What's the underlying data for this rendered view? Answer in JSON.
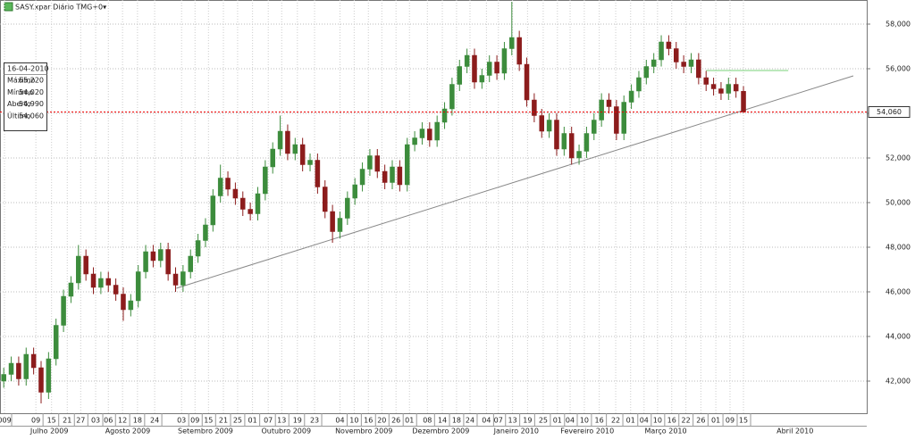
{
  "chart_data": {
    "type": "candlestick",
    "title": "SASY.xpar Diário TMG+0▾",
    "up_color": "#3c8c3c",
    "down_color": "#8c1c1c",
    "grid": true,
    "xlim": [
      -0.5,
      115.5
    ],
    "ylim": [
      40560,
      59080
    ],
    "yticks": [
      {
        "value": 42000,
        "label": "42,000"
      },
      {
        "value": 44000,
        "label": "44,000"
      },
      {
        "value": 46000,
        "label": "46,000"
      },
      {
        "value": 48000,
        "label": "48,000"
      },
      {
        "value": 50000,
        "label": "50,000"
      },
      {
        "value": 52000,
        "label": "52,000"
      },
      {
        "value": 54000,
        "label": "54,000"
      },
      {
        "value": 56000,
        "label": "56,000"
      },
      {
        "value": 58000,
        "label": "58,000"
      }
    ],
    "xticks": [
      {
        "value": 0.1,
        "label": "009"
      },
      {
        "value": 4.3,
        "label": "09"
      },
      {
        "value": 6.4,
        "label": "15"
      },
      {
        "value": 8.5,
        "label": "21"
      },
      {
        "value": 10.3,
        "label": "27"
      },
      {
        "value": 12.3,
        "label": "03"
      },
      {
        "value": 14,
        "label": "06"
      },
      {
        "value": 15.9,
        "label": "12"
      },
      {
        "value": 17.9,
        "label": "18"
      },
      {
        "value": 20.2,
        "label": "24"
      },
      {
        "value": 23.8,
        "label": "03"
      },
      {
        "value": 25.6,
        "label": "09"
      },
      {
        "value": 27.4,
        "label": "15"
      },
      {
        "value": 29.4,
        "label": "21"
      },
      {
        "value": 31.3,
        "label": "25"
      },
      {
        "value": 33.3,
        "label": "01"
      },
      {
        "value": 35.4,
        "label": "07"
      },
      {
        "value": 37.2,
        "label": "13"
      },
      {
        "value": 39.3,
        "label": "19"
      },
      {
        "value": 41.6,
        "label": "23"
      },
      {
        "value": 45,
        "label": "04"
      },
      {
        "value": 46.9,
        "label": "10"
      },
      {
        "value": 48.8,
        "label": "16"
      },
      {
        "value": 50.6,
        "label": "20"
      },
      {
        "value": 52.5,
        "label": "26"
      },
      {
        "value": 54.3,
        "label": "01"
      },
      {
        "value": 56.7,
        "label": "08"
      },
      {
        "value": 58.7,
        "label": "14"
      },
      {
        "value": 60.6,
        "label": "18"
      },
      {
        "value": 62.4,
        "label": "24"
      },
      {
        "value": 64.6,
        "label": "04"
      },
      {
        "value": 66.2,
        "label": "07"
      },
      {
        "value": 68.1,
        "label": "13"
      },
      {
        "value": 70.1,
        "label": "19"
      },
      {
        "value": 72.2,
        "label": "25"
      },
      {
        "value": 74.1,
        "label": "01"
      },
      {
        "value": 75.8,
        "label": "04"
      },
      {
        "value": 77.7,
        "label": "10"
      },
      {
        "value": 79.7,
        "label": "16"
      },
      {
        "value": 81.9,
        "label": "22"
      },
      {
        "value": 83.9,
        "label": "01"
      },
      {
        "value": 85.7,
        "label": "04"
      },
      {
        "value": 87.5,
        "label": "10"
      },
      {
        "value": 89.4,
        "label": "16"
      },
      {
        "value": 91.3,
        "label": "22"
      },
      {
        "value": 93.3,
        "label": "26"
      },
      {
        "value": 95.3,
        "label": "01"
      },
      {
        "value": 97.2,
        "label": "09"
      },
      {
        "value": 99,
        "label": "15"
      }
    ],
    "months": [
      {
        "value": 6.1,
        "label": "Julho 2009"
      },
      {
        "value": 16.6,
        "label": "Agosto 2009"
      },
      {
        "value": 27,
        "label": "Setembro 2009"
      },
      {
        "value": 37.8,
        "label": "Outubro 2009"
      },
      {
        "value": 48.2,
        "label": "Novembro 2009"
      },
      {
        "value": 58.5,
        "label": "Dezembro 2009"
      },
      {
        "value": 68.6,
        "label": "Janeiro 2010"
      },
      {
        "value": 78.1,
        "label": "Fevereiro 2010"
      },
      {
        "value": 88.6,
        "label": "Março 2010"
      },
      {
        "value": 105.9,
        "label": "Abril 2010"
      }
    ],
    "x": [
      0,
      1,
      2,
      3,
      4,
      5,
      6,
      7,
      8,
      9,
      10,
      11,
      12,
      13,
      14,
      15,
      16,
      17,
      18,
      19,
      20,
      21,
      22,
      23,
      24,
      25,
      26,
      27,
      28,
      29,
      30,
      31,
      32,
      33,
      34,
      35,
      36,
      37,
      38,
      39,
      40,
      41,
      42,
      43,
      44,
      45,
      46,
      47,
      48,
      49,
      50,
      51,
      52,
      53,
      54,
      55,
      56,
      57,
      58,
      59,
      60,
      61,
      62,
      63,
      64,
      65,
      66,
      67,
      68,
      69,
      70,
      71,
      72,
      73,
      74,
      75,
      76,
      77,
      78,
      79,
      80,
      81,
      82,
      83,
      84,
      85,
      86,
      87,
      88,
      89,
      90,
      91,
      92,
      93,
      94,
      95,
      96,
      97,
      98,
      99
    ],
    "open": [
      42000,
      42300,
      42800,
      42100,
      43200,
      42600,
      41500,
      43000,
      44500,
      45800,
      46400,
      47600,
      46800,
      46200,
      46600,
      46300,
      45900,
      45200,
      45600,
      46900,
      47800,
      47400,
      47900,
      46800,
      46300,
      46900,
      47600,
      48300,
      49000,
      50300,
      51100,
      50600,
      50200,
      49700,
      49500,
      50400,
      51600,
      52400,
      53200,
      52200,
      52600,
      51700,
      51900,
      50700,
      49600,
      48700,
      49300,
      50200,
      50800,
      51500,
      52100,
      51400,
      50900,
      51600,
      50800,
      52600,
      52900,
      53300,
      52800,
      53600,
      54200,
      55300,
      56100,
      56600,
      55400,
      55700,
      56300,
      55800,
      56900,
      57400,
      56200,
      54600,
      53900,
      53200,
      53700,
      52400,
      53100,
      52000,
      52300,
      53100,
      53700,
      54600,
      54300,
      53100,
      54500,
      55000,
      55600,
      56100,
      56400,
      57200,
      56900,
      56300,
      56100,
      56400,
      55600,
      55300,
      55100,
      54900,
      55300,
      54990
    ],
    "high": [
      42600,
      43100,
      43100,
      43500,
      43500,
      42900,
      43300,
      44800,
      46100,
      46700,
      48100,
      47900,
      47100,
      46900,
      46900,
      46600,
      46200,
      45900,
      47200,
      48100,
      48100,
      48200,
      48200,
      47100,
      47200,
      47900,
      48600,
      49300,
      50600,
      51700,
      51400,
      50900,
      50500,
      50000,
      50700,
      51900,
      52700,
      53900,
      53500,
      52900,
      52900,
      52200,
      52200,
      51000,
      49900,
      49600,
      50500,
      51100,
      51800,
      52400,
      52400,
      51700,
      51900,
      51900,
      52900,
      53200,
      53600,
      53600,
      53900,
      54500,
      55600,
      56400,
      56900,
      56900,
      56000,
      56600,
      56600,
      57200,
      59000,
      57700,
      56500,
      54900,
      54200,
      54000,
      54000,
      53400,
      53400,
      52600,
      53400,
      54000,
      54900,
      54900,
      54600,
      54800,
      55300,
      55900,
      56400,
      56700,
      57500,
      57500,
      57200,
      56600,
      56700,
      56700,
      55900,
      55600,
      55400,
      55600,
      55600,
      55220
    ],
    "low": [
      41700,
      42000,
      41800,
      41800,
      42300,
      41000,
      41200,
      42700,
      44200,
      45500,
      46100,
      46500,
      45900,
      45900,
      46000,
      45600,
      44700,
      44900,
      45300,
      46600,
      47100,
      47100,
      46500,
      46000,
      46000,
      46600,
      47300,
      48000,
      48700,
      50000,
      50300,
      49900,
      49400,
      49200,
      49200,
      50100,
      51300,
      52100,
      51900,
      51900,
      51400,
      51400,
      50400,
      49300,
      48200,
      48400,
      49000,
      49900,
      50500,
      51200,
      51100,
      50600,
      50600,
      50500,
      50500,
      52300,
      52600,
      52500,
      52500,
      53300,
      53900,
      55000,
      55800,
      55100,
      55100,
      55400,
      55500,
      55500,
      56600,
      55900,
      54300,
      53600,
      52900,
      52900,
      52100,
      52100,
      51700,
      51700,
      52000,
      52800,
      53400,
      54000,
      52800,
      52800,
      54200,
      54700,
      55300,
      55800,
      56100,
      56600,
      56000,
      55800,
      55800,
      55300,
      55000,
      54800,
      54600,
      54600,
      54700,
      54020
    ],
    "close": [
      42300,
      42800,
      42100,
      43200,
      42600,
      41500,
      43000,
      44500,
      45800,
      46400,
      47600,
      46800,
      46200,
      46600,
      46300,
      45900,
      45200,
      45600,
      46900,
      47800,
      47400,
      47900,
      46800,
      46300,
      46900,
      47600,
      48300,
      49000,
      50300,
      51100,
      50600,
      50200,
      49700,
      49500,
      50400,
      51600,
      52400,
      53200,
      52200,
      52600,
      51700,
      51900,
      50700,
      49600,
      48700,
      49300,
      50200,
      50800,
      51500,
      52100,
      51400,
      50900,
      51600,
      50800,
      52600,
      52900,
      53300,
      52800,
      53600,
      54200,
      55300,
      56100,
      56600,
      55400,
      55700,
      56300,
      55800,
      56900,
      57400,
      56200,
      54600,
      53900,
      53200,
      53700,
      52400,
      53100,
      52000,
      52300,
      53100,
      53700,
      54600,
      54300,
      53100,
      54500,
      55000,
      55600,
      56100,
      56400,
      57200,
      56900,
      56300,
      56100,
      56400,
      55600,
      55300,
      55100,
      54900,
      55300,
      55000,
      54060
    ],
    "last_label": "54,060",
    "trendline": {
      "x": [
        23.1,
        113.7
      ],
      "y": [
        46160,
        55680
      ],
      "color": "#888888"
    },
    "resistance": {
      "x": [
        94,
        105
      ],
      "y": [
        55920,
        55920
      ],
      "color": "#7ad07a"
    },
    "info": {
      "date": "16-04-2010",
      "rows": [
        {
          "label": "Máximo",
          "value": "55,220"
        },
        {
          "label": "Mínimo",
          "value": "54,020"
        },
        {
          "label": "Aberto",
          "value": "54,990"
        },
        {
          "label": "Último",
          "value": "54,060"
        }
      ]
    }
  }
}
